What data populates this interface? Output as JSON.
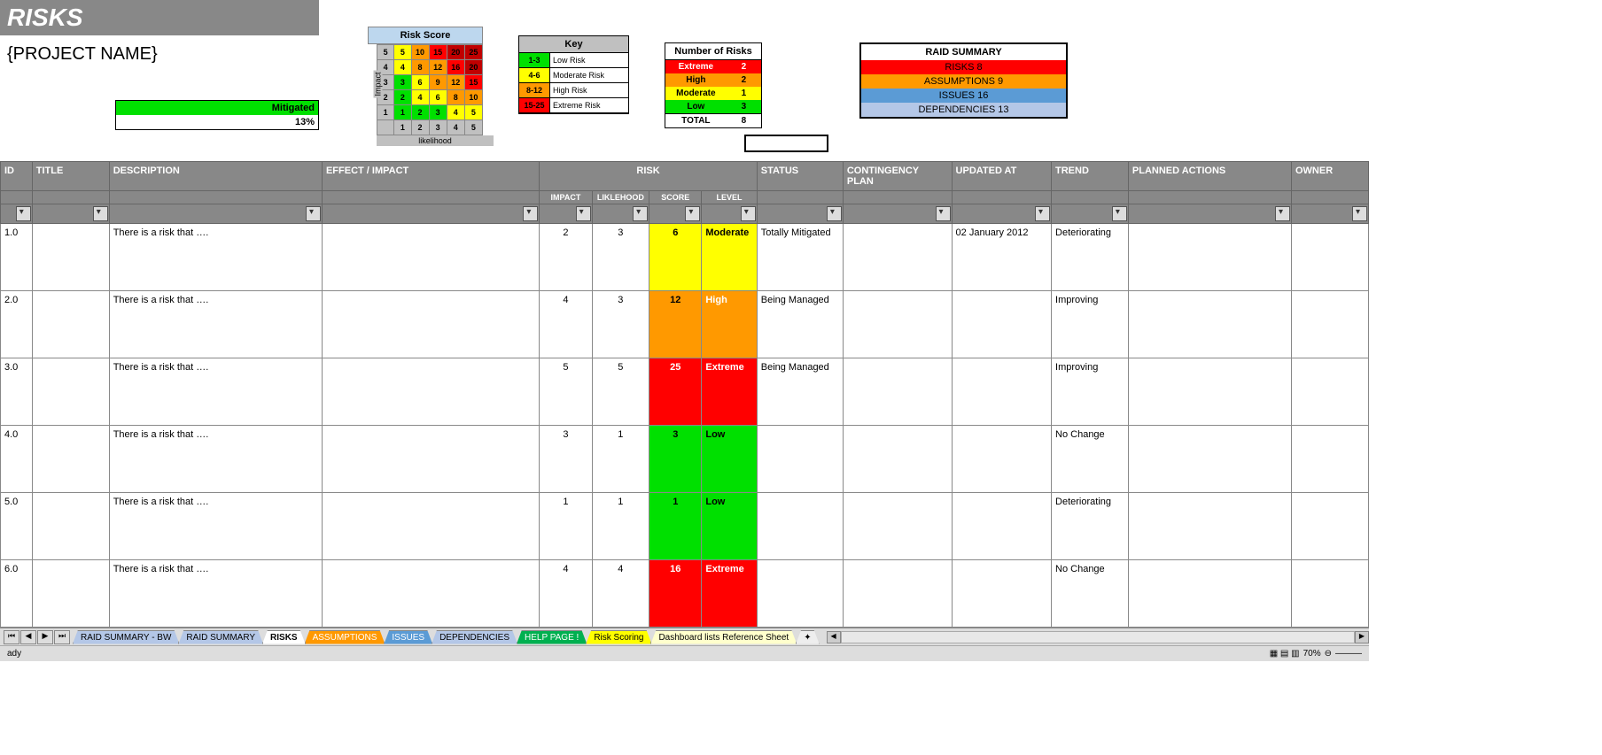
{
  "title": "RISKS",
  "project_name": "{PROJECT NAME}",
  "mitigated": {
    "label": "Mitigated",
    "value": "13%"
  },
  "colors": {
    "green": "#00e000",
    "yellow": "#ffff00",
    "orange": "#ff9900",
    "red": "#ff0000",
    "darkred": "#c00000",
    "gray_header": "#888888",
    "lightblue": "#bdd7ee",
    "steelblue": "#5b9bd5",
    "paleblue": "#b4c7e7",
    "paleyellow": "#ffffcc",
    "lightgreen": "#66ff66",
    "teal": "#00b050",
    "purple": "#7030a0"
  },
  "risk_score_matrix": {
    "title": "Risk Score",
    "impact_label": "Impact",
    "likelihood_label": "likelihood",
    "row_labels": [
      "5",
      "4",
      "3",
      "2",
      "1"
    ],
    "col_labels": [
      "1",
      "2",
      "3",
      "4",
      "5"
    ],
    "cells": [
      [
        {
          "v": "5",
          "c": "#ffff00"
        },
        {
          "v": "10",
          "c": "#ff9900"
        },
        {
          "v": "15",
          "c": "#ff0000"
        },
        {
          "v": "20",
          "c": "#c00000"
        },
        {
          "v": "25",
          "c": "#c00000"
        }
      ],
      [
        {
          "v": "4",
          "c": "#ffff00"
        },
        {
          "v": "8",
          "c": "#ff9900"
        },
        {
          "v": "12",
          "c": "#ff9900"
        },
        {
          "v": "16",
          "c": "#ff0000"
        },
        {
          "v": "20",
          "c": "#c00000"
        }
      ],
      [
        {
          "v": "3",
          "c": "#00e000"
        },
        {
          "v": "6",
          "c": "#ffff00"
        },
        {
          "v": "9",
          "c": "#ff9900"
        },
        {
          "v": "12",
          "c": "#ff9900"
        },
        {
          "v": "15",
          "c": "#ff0000"
        }
      ],
      [
        {
          "v": "2",
          "c": "#00e000"
        },
        {
          "v": "4",
          "c": "#ffff00"
        },
        {
          "v": "6",
          "c": "#ffff00"
        },
        {
          "v": "8",
          "c": "#ff9900"
        },
        {
          "v": "10",
          "c": "#ff9900"
        }
      ],
      [
        {
          "v": "1",
          "c": "#00e000"
        },
        {
          "v": "2",
          "c": "#00e000"
        },
        {
          "v": "3",
          "c": "#00e000"
        },
        {
          "v": "4",
          "c": "#ffff00"
        },
        {
          "v": "5",
          "c": "#ffff00"
        }
      ]
    ]
  },
  "key_panel": {
    "title": "Key",
    "rows": [
      {
        "range": "1-3",
        "label": "Low Risk",
        "c": "#00e000"
      },
      {
        "range": "4-6",
        "label": "Moderate Risk",
        "c": "#ffff00"
      },
      {
        "range": "8-12",
        "label": "High Risk",
        "c": "#ff9900"
      },
      {
        "range": "15-25",
        "label": "Extreme Risk",
        "c": "#ff0000"
      }
    ]
  },
  "num_risks": {
    "title": "Number of Risks",
    "rows": [
      {
        "label": "Extreme",
        "val": "2",
        "bg": "#ff0000",
        "fg": "#ffffff"
      },
      {
        "label": "High",
        "val": "2",
        "bg": "#ff9900",
        "fg": "#000000"
      },
      {
        "label": "Moderate",
        "val": "1",
        "bg": "#ffff00",
        "fg": "#000000"
      },
      {
        "label": "Low",
        "val": "3",
        "bg": "#00e000",
        "fg": "#000000"
      }
    ],
    "total_label": "TOTAL",
    "total_val": "8"
  },
  "raid_summary": {
    "title": "RAID SUMMARY",
    "rows": [
      {
        "text": "RISKS 8",
        "bg": "#ff0000"
      },
      {
        "text": "ASSUMPTIONS 9",
        "bg": "#ff9900"
      },
      {
        "text": "ISSUES 16",
        "bg": "#5b9bd5"
      },
      {
        "text": "DEPENDENCIES 13",
        "bg": "#b4c7e7"
      }
    ]
  },
  "columns": {
    "id": "ID",
    "title": "TITLE",
    "description": "DESCRIPTION",
    "effect": "EFFECT / IMPACT",
    "risk": "RISK",
    "status": "STATUS",
    "contingency": "CONTINGENCY PLAN",
    "updated": "UPDATED AT",
    "trend": "TREND",
    "planned": "PLANNED ACTIONS",
    "owner": "OWNER",
    "impact": "IMPACT",
    "likelihood": "LIKLEHOOD",
    "score": "SCORE",
    "level": "LEVEL"
  },
  "rows": [
    {
      "id": "1.0",
      "desc": "There is a risk that ….",
      "impact": "2",
      "likelihood": "3",
      "score": "6",
      "score_bg": "#ffff00",
      "score_fg": "#000000",
      "level": "Moderate",
      "level_bg": "#ffff00",
      "level_fg": "#000000",
      "status": "Totally Mitigated",
      "updated": "02 January 2012",
      "trend": "Deteriorating"
    },
    {
      "id": "2.0",
      "desc": "There is a risk that ….",
      "impact": "4",
      "likelihood": "3",
      "score": "12",
      "score_bg": "#ff9900",
      "score_fg": "#000000",
      "level": "High",
      "level_bg": "#ff9900",
      "level_fg": "#ffffff",
      "status": "Being Managed",
      "updated": "",
      "trend": "Improving"
    },
    {
      "id": "3.0",
      "desc": "There is a risk that ….",
      "impact": "5",
      "likelihood": "5",
      "score": "25",
      "score_bg": "#ff0000",
      "score_fg": "#ffffff",
      "level": "Extreme",
      "level_bg": "#ff0000",
      "level_fg": "#ffffff",
      "status": "Being Managed",
      "updated": "",
      "trend": "Improving"
    },
    {
      "id": "4.0",
      "desc": "There is a risk that ….",
      "impact": "3",
      "likelihood": "1",
      "score": "3",
      "score_bg": "#00e000",
      "score_fg": "#000000",
      "level": "Low",
      "level_bg": "#00e000",
      "level_fg": "#000000",
      "status": "",
      "updated": "",
      "trend": "No Change"
    },
    {
      "id": "5.0",
      "desc": "There is a risk that ….",
      "impact": "1",
      "likelihood": "1",
      "score": "1",
      "score_bg": "#00e000",
      "score_fg": "#000000",
      "level": "Low",
      "level_bg": "#00e000",
      "level_fg": "#000000",
      "status": "",
      "updated": "",
      "trend": "Deteriorating"
    },
    {
      "id": "6.0",
      "desc": "There is a risk that ….",
      "impact": "4",
      "likelihood": "4",
      "score": "16",
      "score_bg": "#ff0000",
      "score_fg": "#ffffff",
      "level": "Extreme",
      "level_bg": "#ff0000",
      "level_fg": "#ffffff",
      "status": "",
      "updated": "",
      "trend": "No Change"
    }
  ],
  "tabs": [
    {
      "label": "RAID SUMMARY - BW",
      "bg": "#b4c7e7"
    },
    {
      "label": "RAID SUMMARY",
      "bg": "#b4c7e7"
    },
    {
      "label": "RISKS",
      "bg": "#ffffff",
      "active": true
    },
    {
      "label": "ASSUMPTIONS",
      "bg": "#ff9900",
      "fg": "#ffffff"
    },
    {
      "label": "ISSUES",
      "bg": "#5b9bd5",
      "fg": "#ffffff"
    },
    {
      "label": "DEPENDENCIES",
      "bg": "#b4c7e7"
    },
    {
      "label": "HELP PAGE !",
      "bg": "#00b050",
      "fg": "#ffffff"
    },
    {
      "label": "Risk Scoring",
      "bg": "#ffff00"
    },
    {
      "label": "Dashboard lists Reference Sheet",
      "bg": "#ffffcc"
    }
  ],
  "status_bar": {
    "ready": "ady",
    "zoom": "70%"
  }
}
